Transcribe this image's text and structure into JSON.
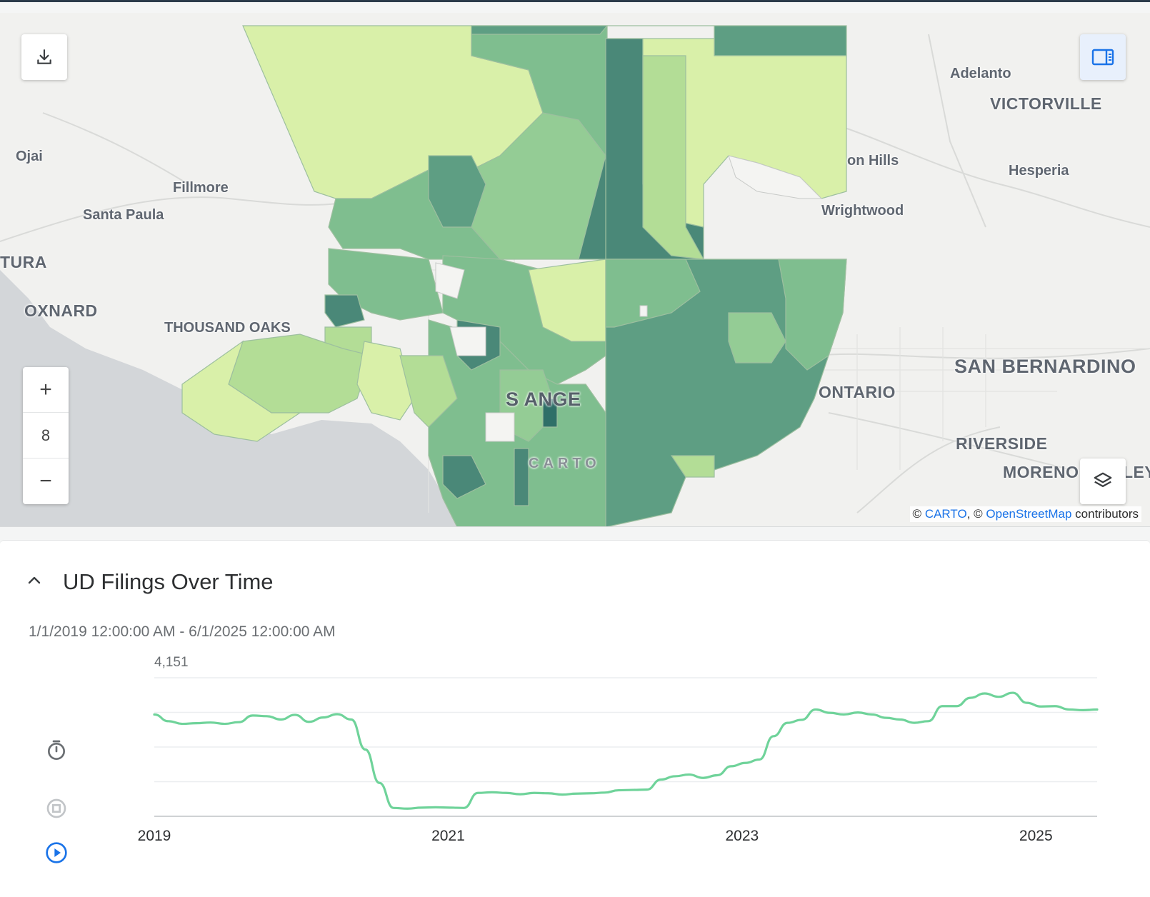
{
  "map": {
    "places": [
      {
        "id": "adelanto",
        "label": "Adelanto"
      },
      {
        "id": "victorville",
        "label": "VICTORVILLE"
      },
      {
        "id": "ojai",
        "label": "Ojai"
      },
      {
        "id": "on-hills",
        "label": "on Hills"
      },
      {
        "id": "hesperia",
        "label": "Hesperia"
      },
      {
        "id": "fillmore",
        "label": "Fillmore"
      },
      {
        "id": "santa-paula",
        "label": "Santa Paula"
      },
      {
        "id": "wrightwood",
        "label": "Wrightwood"
      },
      {
        "id": "tura",
        "label": "TURA"
      },
      {
        "id": "oxnard",
        "label": "OXNARD"
      },
      {
        "id": "thousand-oaks",
        "label": "THOUSAND OAKS"
      },
      {
        "id": "san-bernardino",
        "label": "SAN BERNARDINO"
      },
      {
        "id": "ontario",
        "label": "ONTARIO"
      },
      {
        "id": "los-angeles",
        "label": "S ANGE"
      },
      {
        "id": "riverside",
        "label": "RIVERSIDE"
      },
      {
        "id": "moreno",
        "label": "MORENO"
      },
      {
        "id": "ley",
        "label": "LEY"
      },
      {
        "id": "carto-mark",
        "label": "CARTO"
      }
    ],
    "zoom_in": "+",
    "zoom_level": "8",
    "zoom_out": "−",
    "attribution": {
      "prefix": "©",
      "carto": "CARTO",
      "sep": ", ©",
      "osm": "OpenStreetMap",
      "suffix": "contributors"
    },
    "icons": {
      "download": "download-icon",
      "panel": "panel-toggle-icon",
      "layers": "layers-icon"
    }
  },
  "panel": {
    "title": "UD Filings Over Time",
    "range": "1/1/2019 12:00:00 AM - 6/1/2025 12:00:00 AM",
    "icons": [
      "collapse-chevron-icon",
      "timer-icon",
      "stop-icon",
      "play-icon"
    ]
  },
  "chart_data": {
    "type": "line",
    "y_max_label": "4,151",
    "x_ticks": [
      "2019",
      "2021",
      "2023",
      "2025"
    ],
    "x_start": "2019-01",
    "x_end": "2025-06",
    "ylim": [
      0,
      4151
    ],
    "color": "#6fd39a",
    "grid": true,
    "series": [
      {
        "values": [
          3050,
          2850,
          2770,
          2790,
          2810,
          2770,
          2820,
          3020,
          3000,
          2900,
          3040,
          2830,
          2960,
          3060,
          2900,
          2000,
          1000,
          250,
          230,
          260,
          270,
          260,
          250,
          700,
          720,
          700,
          660,
          700,
          690,
          650,
          680,
          690,
          710,
          780,
          790,
          800,
          1100,
          1200,
          1250,
          1150,
          1230,
          1500,
          1600,
          1700,
          2400,
          2800,
          2890,
          3200,
          3100,
          3050,
          3110,
          3050,
          2950,
          2900,
          2800,
          2850,
          3300,
          3300,
          3550,
          3680,
          3580,
          3700,
          3400,
          3290,
          3300,
          3200,
          3180,
          3200
        ]
      }
    ]
  }
}
